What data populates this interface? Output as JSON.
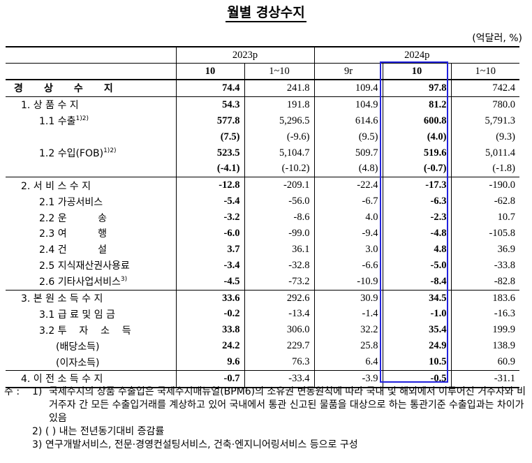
{
  "title": "월별 경상수지",
  "unit": "(억달러, %)",
  "header": {
    "group_2023": "2023p",
    "group_2024": "2024p",
    "cols": [
      "10",
      "1~10",
      "9r",
      "10",
      "1~10"
    ]
  },
  "rows": [
    {
      "label": "경 상 수 지",
      "bold_label": true,
      "vals": [
        "74.4",
        "241.8",
        "109.4",
        "97.8",
        "742.4"
      ]
    },
    {
      "label": "1. 상 품 수 지",
      "vals": [
        "54.3",
        "191.8",
        "104.9",
        "81.2",
        "780.0"
      ]
    },
    {
      "label": "1.1 수출",
      "sup": "1)2)",
      "vals": [
        "577.8",
        "5,296.5",
        "614.6",
        "600.8",
        "5,791.3"
      ]
    },
    {
      "label": "",
      "vals": [
        "(7.5)",
        "(-9.6)",
        "(9.5)",
        "(4.0)",
        "(9.3)"
      ]
    },
    {
      "label": "1.2 수입(FOB)",
      "sup": "1)2)",
      "vals": [
        "523.5",
        "5,104.7",
        "509.7",
        "519.6",
        "5,011.4"
      ]
    },
    {
      "label": "",
      "vals": [
        "(-4.1)",
        "(-10.2)",
        "(4.8)",
        "(-0.7)",
        "(-1.8)"
      ]
    },
    {
      "label": "2. 서 비 스 수 지",
      "vals": [
        "-12.8",
        "-209.1",
        "-22.4",
        "-17.3",
        "-190.0"
      ]
    },
    {
      "label": "2.1 가공서비스",
      "vals": [
        "-5.4",
        "-56.0",
        "-6.7",
        "-6.3",
        "-62.8"
      ]
    },
    {
      "label": "2.2 운          송",
      "vals": [
        "-3.2",
        "-8.6",
        "4.0",
        "-2.3",
        "10.7"
      ]
    },
    {
      "label": "2.3 여          행",
      "vals": [
        "-6.0",
        "-99.0",
        "-9.4",
        "-4.8",
        "-105.8"
      ]
    },
    {
      "label": "2.4 건          설",
      "vals": [
        "3.7",
        "36.1",
        "3.0",
        "4.8",
        "36.9"
      ]
    },
    {
      "label": "2.5 지식재산권사용료",
      "vals": [
        "-3.4",
        "-32.8",
        "-6.6",
        "-5.0",
        "-33.8"
      ]
    },
    {
      "label": "2.6 기타사업서비스",
      "sup": "3)",
      "vals": [
        "-4.5",
        "-73.2",
        "-10.9",
        "-8.4",
        "-82.8"
      ]
    },
    {
      "label": "3. 본 원 소 득 수 지",
      "vals": [
        "33.6",
        "292.6",
        "30.9",
        "34.5",
        "183.6"
      ]
    },
    {
      "label": "3.1 급 료 및 임 금",
      "vals": [
        "-0.2",
        "-13.4",
        "-1.4",
        "-1.0",
        "-16.3"
      ]
    },
    {
      "label": "3.2 투    자    소    득",
      "vals": [
        "33.8",
        "306.0",
        "32.2",
        "35.4",
        "199.9"
      ]
    },
    {
      "label": "(배당소득)",
      "vals": [
        "24.2",
        "229.7",
        "25.8",
        "24.9",
        "138.9"
      ]
    },
    {
      "label": "(이자소득)",
      "vals": [
        "9.6",
        "76.3",
        "6.4",
        "10.5",
        "60.9"
      ]
    },
    {
      "label": "4. 이 전 소 득 수 지",
      "vals": [
        "-0.7",
        "-33.4",
        "-3.9",
        "-0.5",
        "-31.1"
      ]
    }
  ],
  "notes": {
    "prefix": "주 :",
    "n1_tag": "1)",
    "n1": "국제수지의 상품 수출입은 국제수지매뉴얼(BPM6)의 소유권 변동원칙에 따라 국내 및 해외에서 이루어진 거주자와 비거주자 간 모든 수출입거래를 계상하고 있어 국내에서 통관 신고된 물품을 대상으로 하는 통관기준 수출입과는 차이가 있음",
    "n2_tag": "2)",
    "n2": "(   ) 내는 전년동기대비 증감률",
    "n3_tag": "3)",
    "n3": "연구개발서비스, 전문·경영컨설팅서비스, 건축·엔지니어링서비스 등으로 구성"
  }
}
